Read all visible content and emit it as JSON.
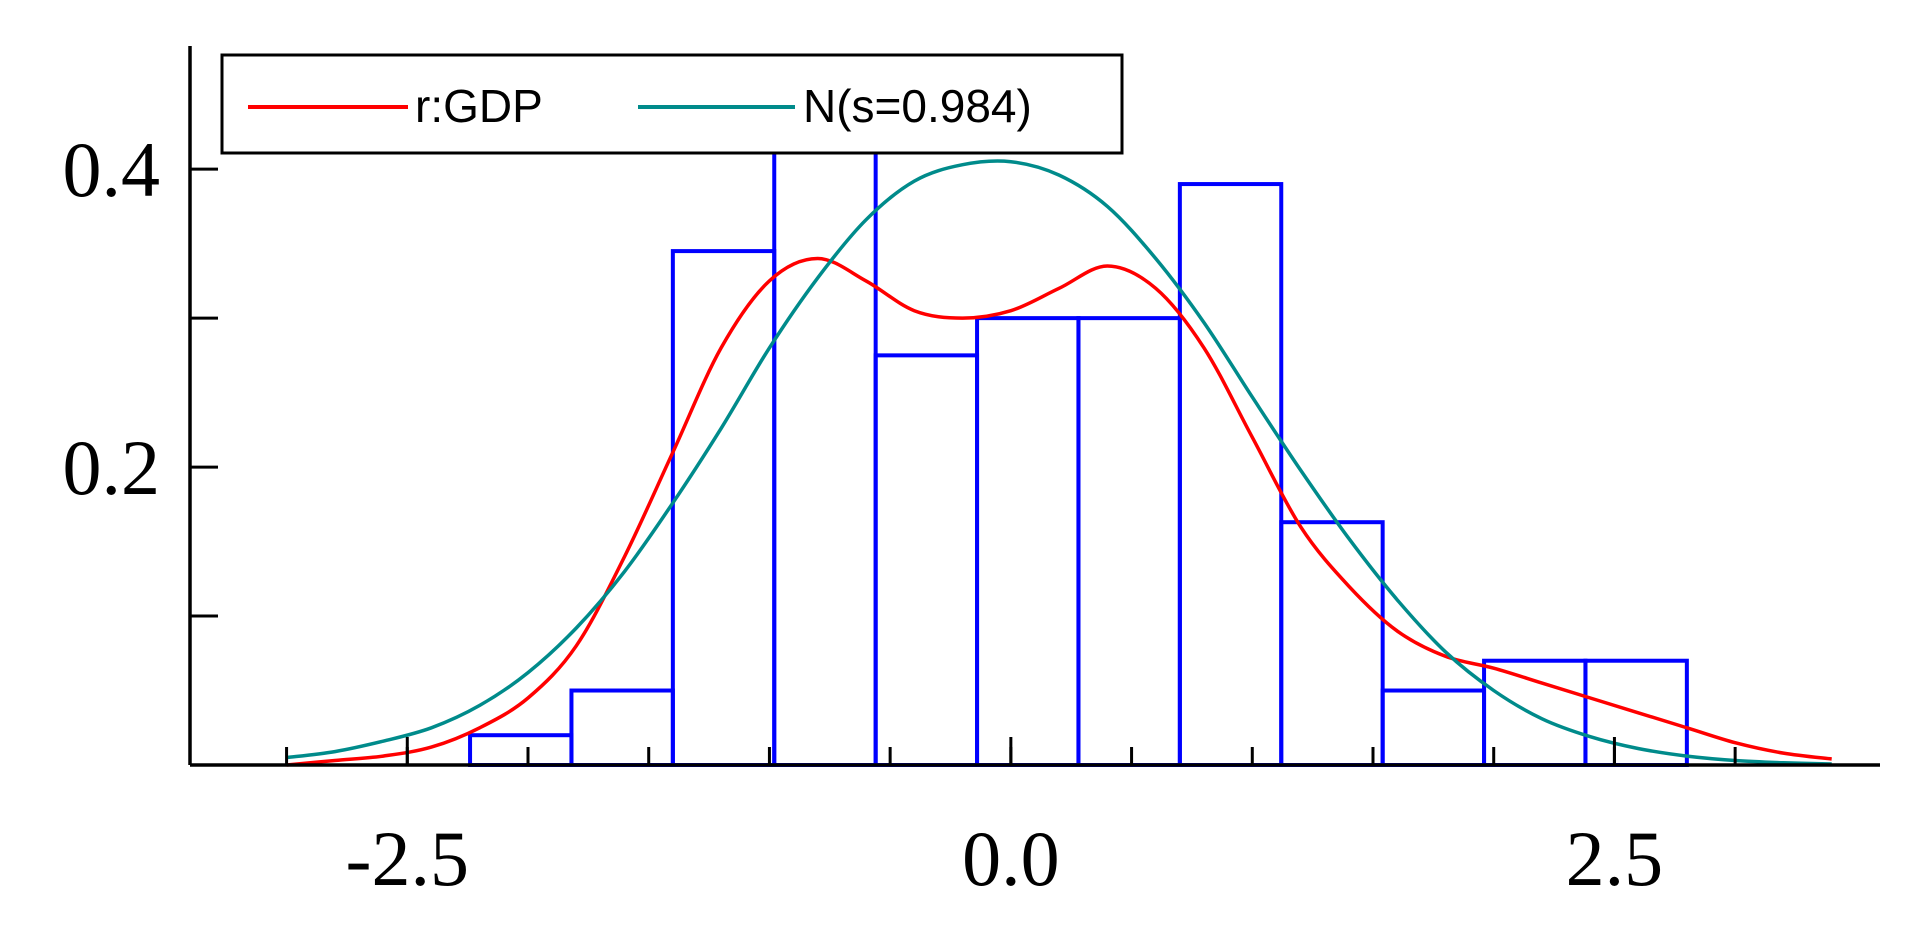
{
  "chart_data": {
    "type": "bar",
    "title": "",
    "xlabel": "",
    "ylabel": "",
    "xlim": [
      -3.4,
      3.6
    ],
    "ylim": [
      0,
      0.48
    ],
    "grid": false,
    "legend_position": "top-left",
    "x_ticks": [
      -2.5,
      0.0,
      2.5
    ],
    "x_tick_labels": [
      "-2.5",
      "0.0",
      "2.5"
    ],
    "x_minor_ticks": [
      -3.0,
      -2.5,
      -2.0,
      -1.5,
      -1.0,
      -0.5,
      0.0,
      0.5,
      1.0,
      1.5,
      2.0,
      2.5,
      3.0
    ],
    "y_ticks": [
      0.1,
      0.2,
      0.3,
      0.4
    ],
    "y_tick_labels": [
      "",
      "0.2",
      "",
      "0.4"
    ],
    "histogram": {
      "color": "#0000ff",
      "bins": [
        {
          "x0": -2.24,
          "x1": -1.82,
          "value": 0.02
        },
        {
          "x0": -1.82,
          "x1": -1.4,
          "value": 0.05
        },
        {
          "x0": -1.4,
          "x1": -0.98,
          "value": 0.345
        },
        {
          "x0": -0.98,
          "x1": -0.56,
          "value": 0.415
        },
        {
          "x0": -0.56,
          "x1": -0.14,
          "value": 0.275
        },
        {
          "x0": -0.14,
          "x1": 0.28,
          "value": 0.3
        },
        {
          "x0": 0.28,
          "x1": 0.7,
          "value": 0.3
        },
        {
          "x0": 0.7,
          "x1": 1.12,
          "value": 0.39
        },
        {
          "x0": 1.12,
          "x1": 1.54,
          "value": 0.163
        },
        {
          "x0": 1.54,
          "x1": 1.96,
          "value": 0.05
        },
        {
          "x0": 1.96,
          "x1": 2.38,
          "value": 0.07
        },
        {
          "x0": 2.38,
          "x1": 2.8,
          "value": 0.07
        }
      ]
    },
    "series": [
      {
        "name": "r:GDP",
        "color": "#ff0000",
        "x": [
          -3.0,
          -2.8,
          -2.6,
          -2.4,
          -2.2,
          -2.0,
          -1.8,
          -1.6,
          -1.4,
          -1.2,
          -1.0,
          -0.8,
          -0.6,
          -0.4,
          -0.2,
          0.0,
          0.2,
          0.4,
          0.6,
          0.8,
          1.0,
          1.2,
          1.4,
          1.6,
          1.8,
          2.0,
          2.2,
          2.4,
          2.6,
          2.8,
          3.0,
          3.2,
          3.4
        ],
        "values": [
          0.0,
          0.003,
          0.006,
          0.012,
          0.025,
          0.045,
          0.08,
          0.14,
          0.21,
          0.28,
          0.325,
          0.34,
          0.325,
          0.305,
          0.3,
          0.305,
          0.32,
          0.335,
          0.32,
          0.28,
          0.22,
          0.16,
          0.12,
          0.09,
          0.073,
          0.065,
          0.055,
          0.045,
          0.035,
          0.025,
          0.015,
          0.008,
          0.004
        ]
      },
      {
        "name": "N(s=0.984)",
        "color": "#008b8b",
        "x": [
          -3.0,
          -2.8,
          -2.6,
          -2.4,
          -2.2,
          -2.0,
          -1.8,
          -1.6,
          -1.4,
          -1.2,
          -1.0,
          -0.8,
          -0.6,
          -0.4,
          -0.2,
          0.0,
          0.2,
          0.4,
          0.6,
          0.8,
          1.0,
          1.2,
          1.4,
          1.6,
          1.8,
          2.0,
          2.2,
          2.4,
          2.6,
          2.8,
          3.0,
          3.2,
          3.4
        ],
        "values": [
          0.005,
          0.009,
          0.016,
          0.025,
          0.04,
          0.062,
          0.092,
          0.13,
          0.176,
          0.226,
          0.28,
          0.327,
          0.366,
          0.392,
          0.403,
          0.405,
          0.396,
          0.375,
          0.34,
          0.297,
          0.247,
          0.198,
          0.152,
          0.111,
          0.076,
          0.05,
          0.031,
          0.019,
          0.011,
          0.006,
          0.003,
          0.0015,
          0.0007
        ]
      }
    ]
  }
}
